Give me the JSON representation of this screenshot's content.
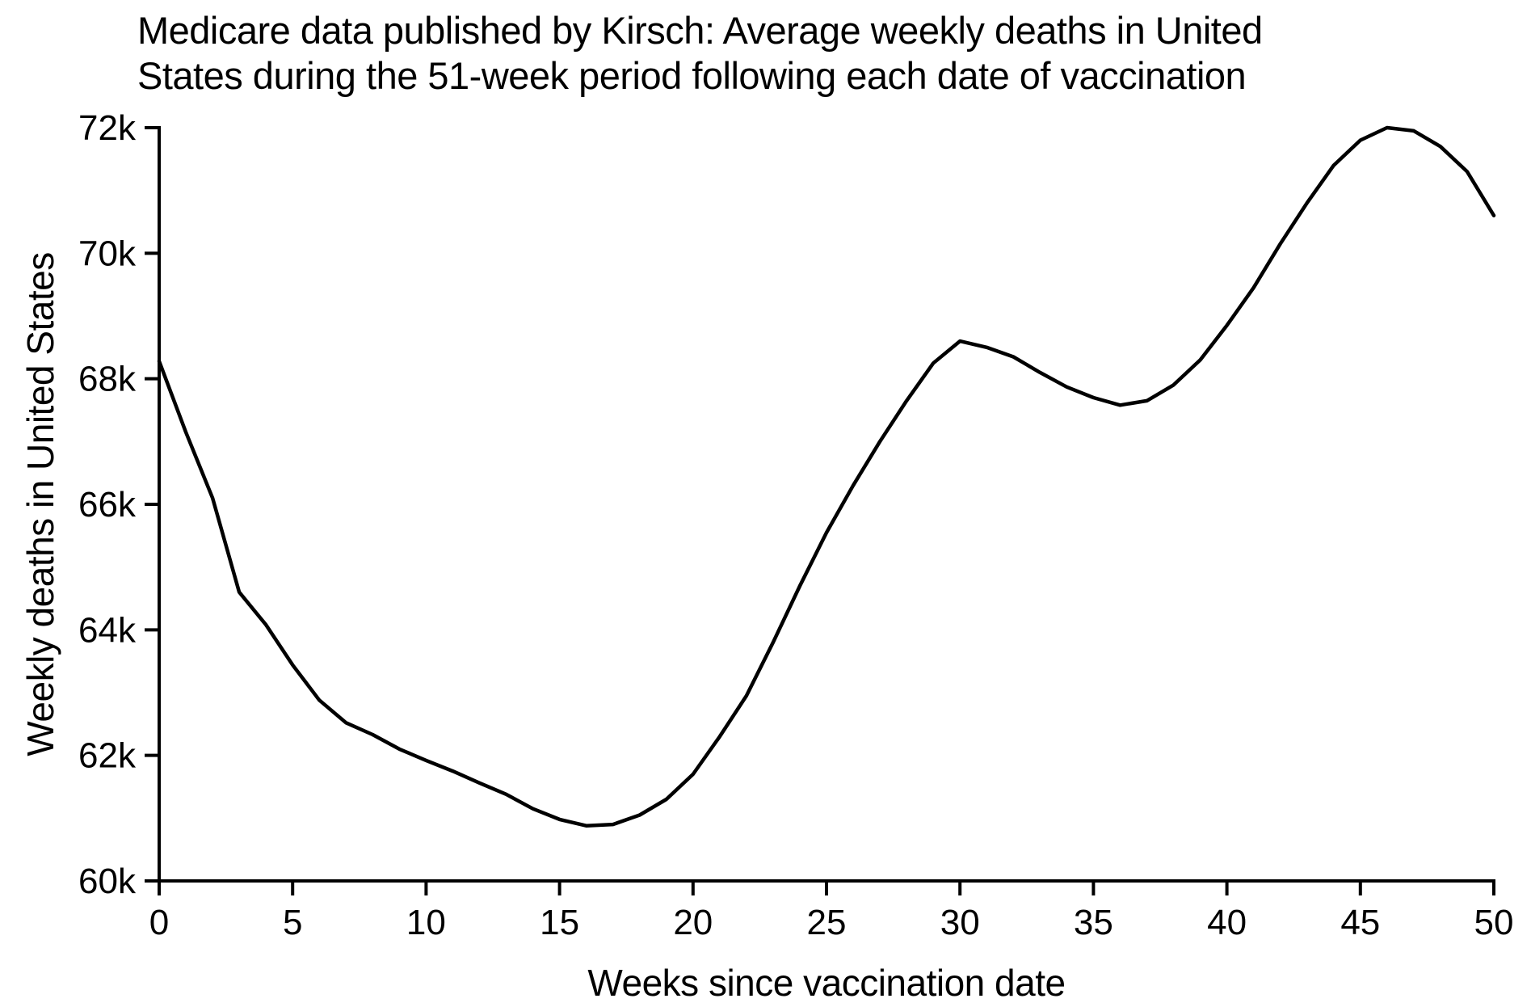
{
  "chart_data": {
    "type": "line",
    "title": "Medicare data published by Kirsch: Average weekly deaths in United States during the 51-week period following each date of vaccination",
    "title_lines": [
      "Medicare data published by Kirsch: Average weekly deaths in United",
      "States during the 51-week period following each date of vaccination"
    ],
    "xlabel": "Weeks since vaccination date",
    "ylabel": "Weekly deaths in United States",
    "xlim": [
      0,
      50
    ],
    "ylim": [
      60000,
      72000
    ],
    "grid": false,
    "legend": "none",
    "x_tick_values": [
      0,
      5,
      10,
      15,
      20,
      25,
      30,
      35,
      40,
      45,
      50
    ],
    "x_tick_labels": [
      "0",
      "5",
      "10",
      "15",
      "20",
      "25",
      "30",
      "35",
      "40",
      "45",
      "50"
    ],
    "y_tick_values": [
      60000,
      62000,
      64000,
      66000,
      68000,
      70000,
      72000
    ],
    "y_tick_labels": [
      "60k",
      "62k",
      "64k",
      "66k",
      "68k",
      "70k",
      "72k"
    ],
    "x": [
      0,
      1,
      2,
      3,
      4,
      5,
      6,
      7,
      8,
      9,
      10,
      11,
      12,
      13,
      14,
      15,
      16,
      17,
      18,
      19,
      20,
      21,
      22,
      23,
      24,
      25,
      26,
      27,
      28,
      29,
      30,
      31,
      32,
      33,
      34,
      35,
      36,
      37,
      38,
      39,
      40,
      41,
      42,
      43,
      44,
      45,
      46,
      47,
      48,
      49,
      50
    ],
    "values": [
      68280,
      67150,
      66100,
      64600,
      64080,
      63440,
      62880,
      62520,
      62330,
      62100,
      61920,
      61750,
      61560,
      61380,
      61150,
      60980,
      60880,
      60900,
      61050,
      61300,
      61700,
      62300,
      62950,
      63800,
      64700,
      65550,
      66300,
      67000,
      67650,
      68250,
      68600,
      68500,
      68350,
      68100,
      67870,
      67700,
      67580,
      67650,
      67900,
      68300,
      68850,
      69450,
      70150,
      70800,
      71400,
      71800,
      72000,
      71950,
      71700,
      71300,
      70600
    ],
    "colors": {
      "background": "#ffffff",
      "line": "#000000",
      "text": "#000000"
    }
  }
}
